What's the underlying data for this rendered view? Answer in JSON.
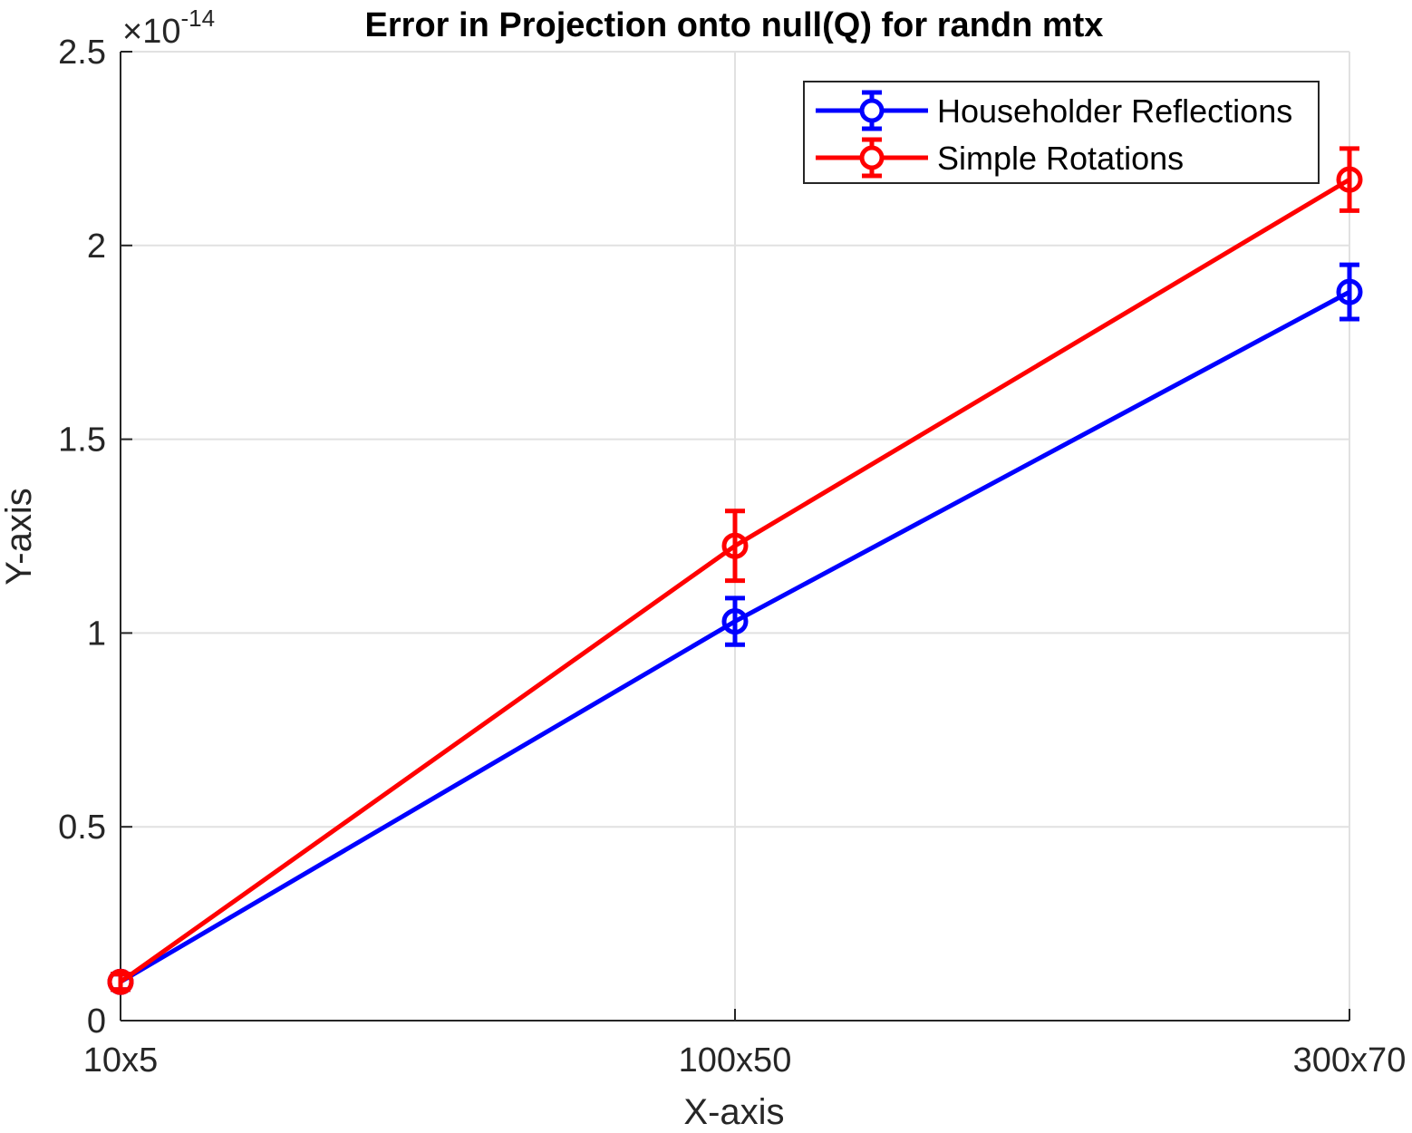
{
  "chart_data": {
    "type": "line",
    "title": "Error in Projection onto null(Q) for randn mtx",
    "xlabel": "X-axis",
    "ylabel": "Y-axis",
    "categories": [
      "10x5",
      "100x50",
      "300x70"
    ],
    "y_exponent_label": "×10",
    "y_exponent_power": "-14",
    "y_ticks": [
      0,
      0.5,
      1,
      1.5,
      2,
      2.5
    ],
    "y_tick_labels": [
      "0",
      "0.5",
      "1",
      "1.5",
      "2",
      "2.5"
    ],
    "ylim": [
      0,
      2.5
    ],
    "grid": true,
    "legend_position": "top-right",
    "marker": "circle",
    "series": [
      {
        "name": "Householder Reflections",
        "color": "#0000ff",
        "values": [
          0.1,
          1.03,
          1.88
        ],
        "errors": [
          0.02,
          0.06,
          0.07
        ]
      },
      {
        "name": "Simple Rotations",
        "color": "#ff0000",
        "values": [
          0.1,
          1.225,
          2.17
        ],
        "errors": [
          0.02,
          0.09,
          0.08
        ]
      }
    ]
  }
}
